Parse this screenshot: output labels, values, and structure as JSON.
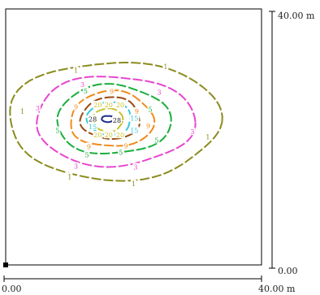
{
  "chart_data": {
    "type": "contour",
    "x_axis": {
      "min_label": "0.00",
      "max_label": "40.00 m",
      "range": [
        0,
        40
      ],
      "unit": "m"
    },
    "y_axis": {
      "min_label": "0.00",
      "max_label": "40.00 m",
      "range": [
        0,
        40
      ],
      "unit": "m"
    },
    "grid": false,
    "legend": "none",
    "contours": [
      {
        "level": "1",
        "color": "#8b8b1e",
        "cx": 17.0,
        "cy": 22.3,
        "rx": 16.5,
        "ry": 9.6,
        "labels": [
          [
            2.6,
            24.0
          ],
          [
            11.0,
            30.4
          ],
          [
            25.0,
            31.0
          ],
          [
            31.6,
            20.0
          ],
          [
            20.0,
            12.7
          ],
          [
            10.0,
            13.8
          ]
        ]
      },
      {
        "level": "3",
        "color": "#e844d0",
        "cx": 17.0,
        "cy": 22.3,
        "rx": 12.4,
        "ry": 7.3,
        "labels": [
          [
            5.0,
            24.5
          ],
          [
            12.0,
            28.2
          ],
          [
            24.0,
            27.0
          ],
          [
            29.2,
            20.8
          ],
          [
            20.3,
            15.3
          ],
          [
            11.0,
            15.4
          ]
        ]
      },
      {
        "level": "5",
        "color": "#1aae3c",
        "cx": 16.8,
        "cy": 22.5,
        "rx": 8.9,
        "ry": 5.6,
        "labels": [
          [
            8.1,
            21.0
          ],
          [
            12.5,
            27.2
          ],
          [
            22.6,
            24.3
          ],
          [
            23.6,
            19.5
          ],
          [
            18.0,
            17.6
          ],
          [
            12.7,
            17.2
          ]
        ]
      },
      {
        "level": "9",
        "color": "#f28a1a",
        "cx": 16.6,
        "cy": 22.6,
        "rx": 6.5,
        "ry": 4.5,
        "labels": [
          [
            11.0,
            24.7
          ],
          [
            16.6,
            27.1
          ],
          [
            20.5,
            24.0
          ],
          [
            22.3,
            21.7
          ],
          [
            18.8,
            18.6
          ],
          [
            13.0,
            18.5
          ]
        ]
      },
      {
        "level": "12",
        "color": "#9a4a10",
        "cx": 16.4,
        "cy": 22.8,
        "rx": 4.6,
        "ry": 3.4,
        "labels": []
      },
      {
        "level": "15",
        "color": "#38c8dc",
        "cx": 16.2,
        "cy": 22.8,
        "rx": 3.4,
        "ry": 2.7,
        "labels": [
          [
            13.6,
            21.6
          ],
          [
            20.1,
            21.0
          ],
          [
            20.1,
            22.9
          ]
        ]
      },
      {
        "level": "20",
        "color": "#c9c229",
        "cx": 16.0,
        "cy": 22.6,
        "rx": 2.3,
        "ry": 1.9,
        "labels": [
          [
            14.4,
            25.0
          ],
          [
            16.1,
            25.0
          ],
          [
            17.9,
            25.0
          ],
          [
            14.4,
            20.3
          ],
          [
            16.1,
            20.3
          ],
          [
            17.9,
            20.3
          ]
        ]
      },
      {
        "level": "28",
        "color": "#1f2f8a",
        "cx": 16.0,
        "cy": 22.8,
        "rx": 1.0,
        "ry": 0.5,
        "labels": [
          [
            13.6,
            22.8
          ],
          [
            17.4,
            22.6
          ]
        ]
      }
    ]
  }
}
